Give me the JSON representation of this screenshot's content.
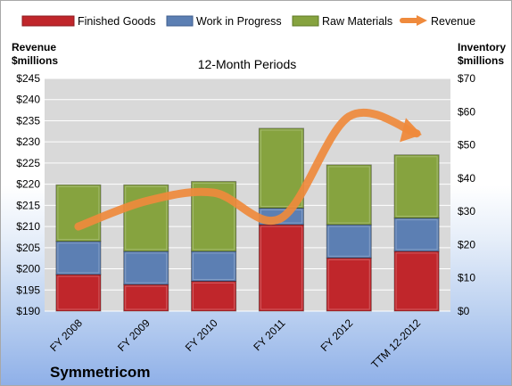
{
  "chart_data": {
    "type": "bar",
    "stacked": true,
    "subtitle": "12-Month Periods",
    "company": "Symmetricom",
    "categories": [
      "FY 2008",
      "FY 2009",
      "FY 2010",
      "FY 2011",
      "FY 2012",
      "TTM 12-2012"
    ],
    "left_axis": {
      "title_line1": "Revenue",
      "title_line2": "$millions",
      "min": 190,
      "max": 245,
      "step": 5,
      "tick_labels": [
        "$190",
        "$195",
        "$200",
        "$205",
        "$210",
        "$215",
        "$220",
        "$225",
        "$230",
        "$235",
        "$240",
        "$245"
      ]
    },
    "right_axis": {
      "title_line1": "Inventory",
      "title_line2": "$millions",
      "min": 0,
      "max": 70,
      "step": 10,
      "tick_labels": [
        "$0",
        "$10",
        "$20",
        "$30",
        "$40",
        "$50",
        "$60",
        "$70"
      ]
    },
    "series": [
      {
        "name": "Finished Goods",
        "color": "#c0262b",
        "values": [
          11,
          8,
          9,
          26,
          16,
          18
        ]
      },
      {
        "name": "Work in Progress",
        "color": "#5c7fb3",
        "values": [
          10,
          10,
          9,
          5,
          10,
          10
        ]
      },
      {
        "name": "Raw Materials",
        "color": "#86a33f",
        "values": [
          17,
          20,
          21,
          24,
          18,
          19
        ]
      }
    ],
    "line_series": {
      "name": "Revenue",
      "color": "#ef8a3c",
      "axis": "left",
      "values": [
        210,
        216,
        218,
        212,
        236,
        232
      ]
    },
    "grid": true,
    "legend_position": "top"
  }
}
